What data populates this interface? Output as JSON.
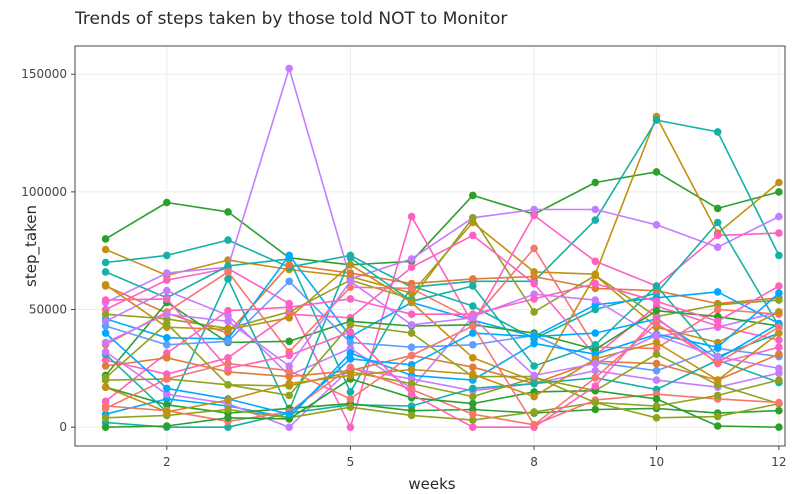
{
  "chart_data": {
    "type": "line",
    "title": "Trends of steps taken by those told NOT to Monitor",
    "xlabel": "weeks",
    "ylabel": "step_taken",
    "xlim": [
      0.5,
      12.1
    ],
    "ylim": [
      -8000,
      162000
    ],
    "x_ticks": [
      2,
      5,
      8,
      10,
      12
    ],
    "y_ticks": [
      0,
      50000,
      100000,
      150000
    ],
    "y_tick_labels": [
      "0",
      "50000",
      "100000",
      "150000"
    ],
    "grid": true,
    "legend": "none",
    "x": [
      1,
      2,
      3,
      4,
      5,
      6,
      7,
      8,
      9,
      10,
      11,
      12
    ],
    "series": [
      {
        "color": "#2ca02c",
        "values": [
          80000,
          95500,
          91500,
          72000,
          69000,
          70500,
          98500,
          90500,
          104000,
          108500,
          93000,
          100000
        ]
      },
      {
        "color": "#c5900f",
        "values": [
          75500,
          64500,
          71000,
          67000,
          64000,
          57000,
          87000,
          66000,
          65000,
          132000,
          82500,
          104000
        ]
      },
      {
        "color": "#16b1a6",
        "values": [
          70000,
          73000,
          79500,
          68000,
          73000,
          59500,
          62000,
          62000,
          88000,
          130500,
          125500,
          73000
        ]
      },
      {
        "color": "#c77cff",
        "values": [
          53000,
          65500,
          68000,
          152500,
          63000,
          71500,
          89000,
          92500,
          92500,
          86000,
          76500,
          89500
        ]
      },
      {
        "color": "#ff61c3",
        "values": [
          50000,
          62500,
          67500,
          52500,
          0,
          89500,
          44000,
          90000,
          70500,
          60000,
          81500,
          82500
        ]
      },
      {
        "color": "#16b1a6",
        "values": [
          66000,
          55000,
          68500,
          71500,
          15000,
          60000,
          51500,
          37500,
          50000,
          57000,
          87000,
          43000
        ]
      },
      {
        "color": "#e07b39",
        "values": [
          60000,
          48500,
          40000,
          69000,
          65500,
          61000,
          63000,
          64000,
          59000,
          58000,
          52500,
          55000
        ]
      },
      {
        "color": "#00a9ff",
        "values": [
          46000,
          38000,
          37500,
          73000,
          38500,
          53000,
          45500,
          38500,
          52000,
          55000,
          57500,
          44000
        ]
      },
      {
        "color": "#8fa31f",
        "values": [
          48000,
          46000,
          42000,
          49000,
          62500,
          54500,
          89000,
          49000,
          64500,
          47000,
          52000,
          54000
        ]
      },
      {
        "color": "#f8766d",
        "values": [
          35000,
          49000,
          66000,
          32000,
          59500,
          59000,
          45500,
          76000,
          34000,
          33500,
          50000,
          48000
        ]
      },
      {
        "color": "#c77cff",
        "values": [
          45000,
          58000,
          47500,
          22000,
          33500,
          16500,
          47000,
          56500,
          54000,
          38500,
          42500,
          49000
        ]
      },
      {
        "color": "#ff61c3",
        "values": [
          28500,
          22500,
          29500,
          48000,
          46500,
          68000,
          81500,
          61000,
          30500,
          51500,
          43000,
          37000
        ]
      },
      {
        "color": "#2ca02c",
        "values": [
          22000,
          53000,
          36000,
          36500,
          45000,
          43000,
          43500,
          40000,
          33000,
          49500,
          47000,
          43000
        ]
      },
      {
        "color": "#16b1a6",
        "values": [
          31000,
          6500,
          63000,
          7000,
          72000,
          53500,
          60000,
          26000,
          35000,
          60000,
          30000,
          40000
        ]
      },
      {
        "color": "#619cff",
        "values": [
          43000,
          35000,
          36500,
          62000,
          36000,
          34000,
          35000,
          39000,
          27500,
          24000,
          33500,
          30000
        ]
      },
      {
        "color": "#c5900f",
        "values": [
          60500,
          42500,
          41500,
          46500,
          69000,
          53000,
          29500,
          19500,
          64500,
          42500,
          36000,
          49000
        ]
      },
      {
        "color": "#ff61c3",
        "values": [
          11000,
          31500,
          49500,
          51000,
          54500,
          48000,
          48000,
          54500,
          61000,
          53500,
          45000,
          60000
        ]
      },
      {
        "color": "#00a9ff",
        "values": [
          5500,
          12000,
          9000,
          4000,
          31500,
          22000,
          20000,
          35500,
          31000,
          39500,
          34000,
          57000
        ]
      },
      {
        "color": "#c77cff",
        "values": [
          32000,
          14000,
          10000,
          0,
          25000,
          20500,
          15500,
          18500,
          24000,
          20000,
          17000,
          23000
        ]
      },
      {
        "color": "#e07b39",
        "values": [
          26000,
          29500,
          23500,
          21500,
          24000,
          30500,
          25500,
          18500,
          28000,
          27000,
          20000,
          31000
        ]
      },
      {
        "color": "#8fa31f",
        "values": [
          20000,
          20500,
          18000,
          17500,
          23500,
          18500,
          13000,
          21000,
          15500,
          31000,
          18000,
          10000
        ]
      },
      {
        "color": "#16b1a6",
        "values": [
          2000,
          0,
          0,
          6000,
          9500,
          9000,
          16500,
          18500,
          21000,
          16000,
          28500,
          19000
        ]
      },
      {
        "color": "#2ca02c",
        "values": [
          17000,
          9500,
          6000,
          8000,
          10000,
          7000,
          7500,
          6000,
          7500,
          8000,
          6000,
          7000
        ]
      },
      {
        "color": "#8fa31f",
        "values": [
          4000,
          5000,
          7500,
          4000,
          8500,
          5000,
          3000,
          6500,
          10500,
          4000,
          4500,
          10000
        ]
      },
      {
        "color": "#f8766d",
        "values": [
          9000,
          7000,
          2500,
          6500,
          25500,
          16000,
          5500,
          1000,
          11500,
          14000,
          12000,
          10500
        ]
      },
      {
        "color": "#2ca02c",
        "values": [
          0,
          500,
          4000,
          3500,
          20500,
          12500,
          10000,
          15000,
          15500,
          12000,
          500,
          0
        ]
      },
      {
        "color": "#00a9ff",
        "values": [
          40000,
          16500,
          12000,
          5500,
          29000,
          26500,
          40000,
          38500,
          40000,
          46000,
          29000,
          44000
        ]
      },
      {
        "color": "#8fa31f",
        "values": [
          21000,
          44000,
          18000,
          13500,
          43500,
          40000,
          21500,
          21500,
          10500,
          9000,
          13500,
          20000
        ]
      },
      {
        "color": "#c5900f",
        "values": [
          17000,
          6500,
          11500,
          18500,
          22000,
          24500,
          22500,
          13000,
          29000,
          36000,
          20000,
          40000
        ]
      },
      {
        "color": "#ff61c3",
        "values": [
          54000,
          54500,
          25000,
          30500,
          40500,
          14000,
          0,
          0,
          17500,
          46500,
          27000,
          34000
        ]
      },
      {
        "color": "#f8766d",
        "values": [
          8000,
          20500,
          27000,
          24000,
          12000,
          30500,
          43000,
          1000,
          21000,
          44000,
          27500,
          42500
        ]
      },
      {
        "color": "#c77cff",
        "values": [
          36000,
          48000,
          45000,
          26000,
          62000,
          43500,
          46500,
          22000,
          27000,
          39000,
          30000,
          25000
        ]
      }
    ]
  }
}
